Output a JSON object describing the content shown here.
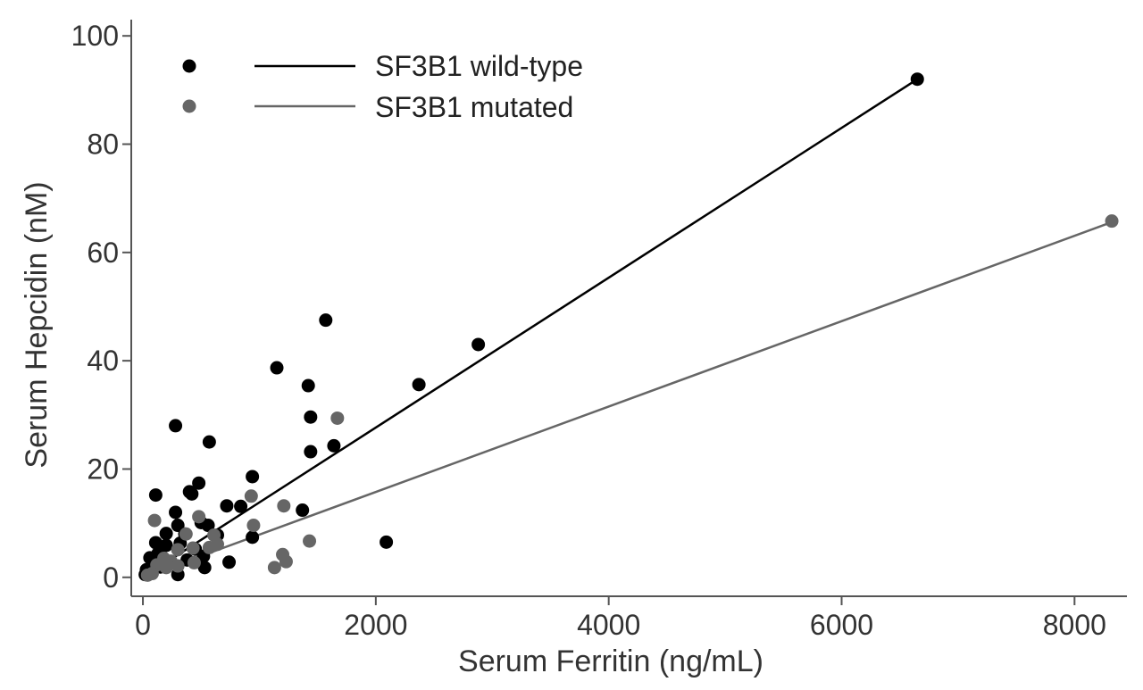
{
  "chart_data": {
    "type": "scatter",
    "title": "",
    "xlabel": "Serum Ferritin (ng/mL)",
    "ylabel": "Serum Hepcidin (nM)",
    "xlim": [
      -100,
      8450
    ],
    "ylim": [
      -3.5,
      103
    ],
    "xticks": [
      0,
      2000,
      4000,
      6000,
      8000
    ],
    "yticks": [
      0,
      20,
      40,
      60,
      80,
      100
    ],
    "grid": false,
    "legend_position": "top-left",
    "series": [
      {
        "name": "SF3B1 wild-type",
        "color": "#000000",
        "fit_line": {
          "x": [
            0,
            6650
          ],
          "y": [
            0,
            92
          ]
        },
        "points": [
          [
            6650,
            92
          ],
          [
            2880,
            43
          ],
          [
            2370,
            35.6
          ],
          [
            1570,
            47.5
          ],
          [
            1150,
            38.7
          ],
          [
            1420,
            35.4
          ],
          [
            1440,
            29.6
          ],
          [
            1440,
            23.2
          ],
          [
            1640,
            24.3
          ],
          [
            2090,
            6.5
          ],
          [
            1370,
            12.4
          ],
          [
            280,
            28
          ],
          [
            570,
            25
          ],
          [
            940,
            18.6
          ],
          [
            480,
            17.4
          ],
          [
            400,
            15.8
          ],
          [
            420,
            15.4
          ],
          [
            110,
            15.2
          ],
          [
            720,
            13.2
          ],
          [
            840,
            13.1
          ],
          [
            280,
            12
          ],
          [
            500,
            10.1
          ],
          [
            560,
            9.6
          ],
          [
            300,
            9.6
          ],
          [
            200,
            8.1
          ],
          [
            360,
            8
          ],
          [
            640,
            7.8
          ],
          [
            940,
            7.4
          ],
          [
            110,
            6.4
          ],
          [
            320,
            6.3
          ],
          [
            200,
            5.9
          ],
          [
            450,
            5.2
          ],
          [
            130,
            4.4
          ],
          [
            520,
            3.9
          ],
          [
            60,
            3.6
          ],
          [
            380,
            3.2
          ],
          [
            740,
            2.8
          ],
          [
            200,
            2.5
          ],
          [
            530,
            1.8
          ],
          [
            30,
            1.4
          ],
          [
            80,
            1.2
          ],
          [
            50,
            0.8
          ],
          [
            20,
            0.5
          ],
          [
            300,
            0.5
          ],
          [
            150,
            1.9
          ]
        ]
      },
      {
        "name": "SF3B1 mutated",
        "color": "#666666",
        "fit_line": {
          "x": [
            0,
            8320
          ],
          "y": [
            0,
            65.6
          ]
        },
        "points": [
          [
            8320,
            65.8
          ],
          [
            1670,
            29.4
          ],
          [
            930,
            15
          ],
          [
            1210,
            13.2
          ],
          [
            480,
            11.2
          ],
          [
            100,
            10.5
          ],
          [
            950,
            9.6
          ],
          [
            370,
            8
          ],
          [
            610,
            7.8
          ],
          [
            1430,
            6.7
          ],
          [
            640,
            6.1
          ],
          [
            570,
            5.5
          ],
          [
            300,
            5.1
          ],
          [
            430,
            5.4
          ],
          [
            1200,
            4.2
          ],
          [
            180,
            3.5
          ],
          [
            240,
            3
          ],
          [
            440,
            2.7
          ],
          [
            1230,
            2.9
          ],
          [
            120,
            2.3
          ],
          [
            300,
            2.1
          ],
          [
            200,
            1.8
          ],
          [
            1130,
            1.8
          ],
          [
            80,
            0.7
          ],
          [
            40,
            0.4
          ]
        ]
      }
    ]
  }
}
